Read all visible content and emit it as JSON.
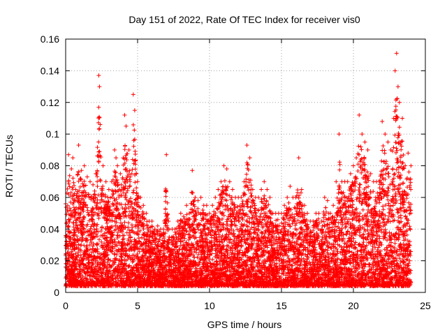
{
  "chart_data": {
    "type": "scatter",
    "title": "Day 151 of 2022, Rate Of TEC Index for receiver vis0",
    "xlabel": "GPS time / hours",
    "ylabel": "ROTI / TECUs",
    "xlim": [
      0,
      25
    ],
    "ylim": [
      0,
      0.16
    ],
    "xticks": [
      0,
      5,
      10,
      15,
      20,
      25
    ],
    "xtick_labels": [
      "0",
      "5",
      "10",
      "15",
      "20",
      "25"
    ],
    "yticks": [
      0,
      0.02,
      0.04,
      0.06,
      0.08,
      0.1,
      0.12,
      0.14,
      0.16
    ],
    "ytick_labels": [
      "0",
      "0.02",
      "0.04",
      "0.06",
      "0.08",
      "0.1",
      "0.12",
      "0.14",
      "0.16"
    ],
    "grid": true,
    "marker": "+",
    "marker_color": "#ff0000",
    "series": [
      {
        "values_note_x": "hours",
        "x": [
          0.0,
          0.2,
          0.4,
          0.5,
          0.7,
          0.9,
          1.1,
          1.3,
          1.5,
          1.7,
          1.9,
          2.1,
          2.3,
          2.35,
          2.4,
          2.6,
          2.8,
          3.0,
          3.2,
          3.4,
          3.5,
          3.6,
          3.8,
          4.0,
          4.1,
          4.2,
          4.4,
          4.6,
          4.7,
          4.8,
          5.0,
          5.2,
          5.4,
          5.6,
          5.8,
          6.0,
          6.2,
          6.4,
          6.6,
          6.8,
          7.0,
          7.2,
          7.4,
          7.6,
          7.8,
          8.0,
          8.2,
          8.4,
          8.6,
          8.8,
          9.0,
          9.2,
          9.4,
          9.6,
          9.8,
          10.0,
          10.2,
          10.4,
          10.6,
          10.8,
          11.0,
          11.2,
          11.4,
          11.6,
          11.8,
          12.0,
          12.2,
          12.4,
          12.6,
          12.8,
          13.0,
          13.2,
          13.4,
          13.6,
          13.8,
          14.0,
          14.2,
          14.4,
          14.6,
          14.8,
          15.0,
          15.2,
          15.4,
          15.6,
          15.8,
          16.0,
          16.2,
          16.4,
          16.6,
          16.8,
          17.0,
          17.2,
          17.4,
          17.6,
          17.8,
          18.0,
          18.2,
          18.4,
          18.6,
          18.8,
          19.0,
          19.2,
          19.4,
          19.6,
          19.8,
          20.0,
          20.2,
          20.4,
          20.6,
          20.8,
          21.0,
          21.2,
          21.4,
          21.6,
          21.8,
          22.0,
          22.2,
          22.4,
          22.6,
          22.8,
          22.9,
          23.0,
          23.1,
          23.2,
          23.4,
          23.6,
          23.8,
          24.0
        ],
        "y": [
          0.056,
          0.087,
          0.078,
          0.085,
          0.065,
          0.093,
          0.077,
          0.08,
          0.073,
          0.07,
          0.068,
          0.075,
          0.137,
          0.13,
          0.106,
          0.08,
          0.07,
          0.065,
          0.07,
          0.09,
          0.085,
          0.08,
          0.075,
          0.085,
          0.112,
          0.105,
          0.09,
          0.075,
          0.125,
          0.115,
          0.07,
          0.06,
          0.055,
          0.05,
          0.045,
          0.045,
          0.04,
          0.042,
          0.04,
          0.04,
          0.087,
          0.035,
          0.04,
          0.04,
          0.045,
          0.05,
          0.048,
          0.055,
          0.05,
          0.077,
          0.06,
          0.058,
          0.06,
          0.055,
          0.055,
          0.05,
          0.055,
          0.06,
          0.065,
          0.07,
          0.08,
          0.078,
          0.07,
          0.065,
          0.06,
          0.06,
          0.06,
          0.07,
          0.093,
          0.085,
          0.065,
          0.06,
          0.06,
          0.065,
          0.07,
          0.065,
          0.06,
          0.05,
          0.05,
          0.05,
          0.05,
          0.055,
          0.06,
          0.067,
          0.06,
          0.06,
          0.085,
          0.065,
          0.055,
          0.05,
          0.045,
          0.045,
          0.05,
          0.05,
          0.045,
          0.06,
          0.058,
          0.05,
          0.055,
          0.07,
          0.1,
          0.07,
          0.07,
          0.07,
          0.075,
          0.08,
          0.085,
          0.112,
          0.1,
          0.095,
          0.09,
          0.075,
          0.07,
          0.07,
          0.07,
          0.108,
          0.1,
          0.095,
          0.09,
          0.11,
          0.14,
          0.151,
          0.13,
          0.12,
          0.11,
          0.08,
          0.088,
          0.08
        ]
      }
    ]
  }
}
